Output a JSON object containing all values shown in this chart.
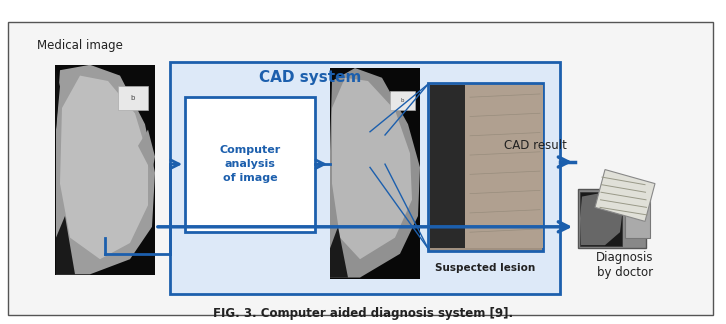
{
  "fig_width": 7.26,
  "fig_height": 3.24,
  "dpi": 100,
  "bg_color": "#ffffff",
  "outer_box_color": "#555555",
  "outer_box_bg": "#f8f8f8",
  "cad_box_color": "#1c5fad",
  "cad_box_bg": "#dde9f8",
  "computer_box_color": "#1c5fad",
  "computer_box_bg": "#ffffff",
  "arrow_color": "#1c5fad",
  "title_text": "FIG. 3. Computer aided diagnosis system [9].",
  "title_fontsize": 8.5,
  "medical_image_label": "Medical image",
  "cad_system_label": "CAD system",
  "computer_label": "Computer\nanalysis\nof image",
  "suspected_lesion_label": "Suspected lesion",
  "cad_result_label": "CAD result",
  "diagnosis_label": "Diagnosis\nby doctor"
}
